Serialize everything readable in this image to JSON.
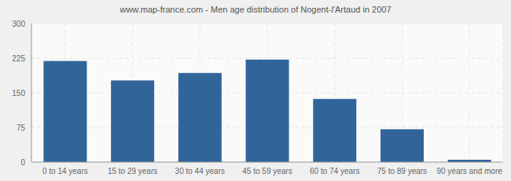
{
  "chart_data": {
    "type": "bar",
    "title": "www.map-france.com - Men age distribution of Nogent-l'Artaud in 2007",
    "categories": [
      "0 to 14 years",
      "15 to 29 years",
      "30 to 44 years",
      "45 to 59 years",
      "60 to 74 years",
      "75 to 89 years",
      "90 years and more"
    ],
    "values": [
      219,
      177,
      193,
      222,
      137,
      71,
      5
    ],
    "color": "#31659a",
    "ylim": [
      0,
      300
    ],
    "yticks": [
      0,
      75,
      150,
      225,
      300
    ],
    "grid": true
  }
}
